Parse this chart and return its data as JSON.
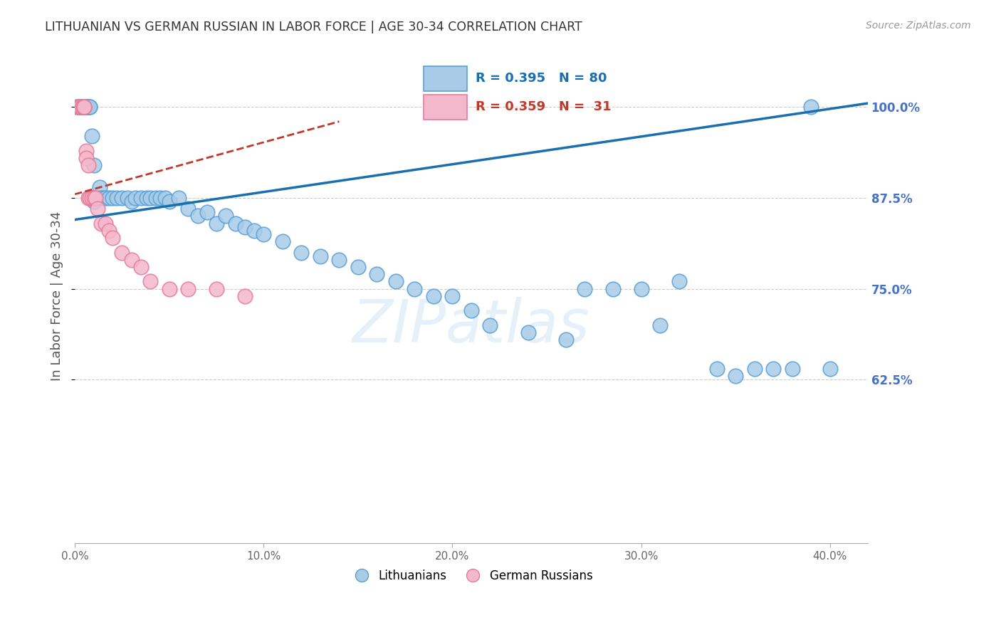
{
  "title": "LITHUANIAN VS GERMAN RUSSIAN IN LABOR FORCE | AGE 30-34 CORRELATION CHART",
  "source": "Source: ZipAtlas.com",
  "ylabel": "In Labor Force | Age 30-34",
  "x_tick_values": [
    0.0,
    0.1,
    0.2,
    0.3,
    0.4
  ],
  "y_tick_values": [
    0.625,
    0.75,
    0.875,
    1.0
  ],
  "xlim": [
    0.0,
    0.42
  ],
  "ylim": [
    0.4,
    1.08
  ],
  "blue_R": 0.395,
  "blue_N": 80,
  "pink_R": 0.359,
  "pink_N": 31,
  "legend_label_blue": "Lithuanians",
  "legend_label_pink": "German Russians",
  "blue_color": "#a8cce8",
  "pink_color": "#f4b8cc",
  "blue_edge_color": "#5a9fd4",
  "pink_edge_color": "#e87a9a",
  "blue_line_color": "#1a6faf",
  "pink_line_color": "#c0392b",
  "title_color": "#333333",
  "axis_label_color": "#555555",
  "tick_label_color_right": "#4472c4",
  "tick_label_color_bottom": "#666666",
  "grid_color": "#cccccc",
  "background_color": "#ffffff",
  "blue_x": [
    0.001,
    0.002,
    0.002,
    0.003,
    0.003,
    0.003,
    0.004,
    0.004,
    0.004,
    0.004,
    0.005,
    0.005,
    0.005,
    0.005,
    0.006,
    0.006,
    0.006,
    0.007,
    0.007,
    0.008,
    0.008,
    0.009,
    0.01,
    0.01,
    0.011,
    0.012,
    0.013,
    0.014,
    0.015,
    0.016,
    0.018,
    0.02,
    0.022,
    0.025,
    0.028,
    0.03,
    0.032,
    0.035,
    0.038,
    0.04,
    0.043,
    0.045,
    0.048,
    0.05,
    0.055,
    0.06,
    0.065,
    0.07,
    0.075,
    0.08,
    0.085,
    0.09,
    0.095,
    0.1,
    0.11,
    0.12,
    0.13,
    0.14,
    0.15,
    0.16,
    0.17,
    0.18,
    0.19,
    0.2,
    0.21,
    0.22,
    0.24,
    0.26,
    0.27,
    0.285,
    0.3,
    0.31,
    0.32,
    0.34,
    0.35,
    0.36,
    0.37,
    0.38,
    0.39,
    0.4
  ],
  "blue_y": [
    1.0,
    1.0,
    1.0,
    1.0,
    1.0,
    1.0,
    1.0,
    1.0,
    1.0,
    1.0,
    1.0,
    1.0,
    1.0,
    1.0,
    1.0,
    1.0,
    1.0,
    1.0,
    1.0,
    1.0,
    1.0,
    0.96,
    0.92,
    0.87,
    0.875,
    0.875,
    0.89,
    0.875,
    0.875,
    0.875,
    0.875,
    0.875,
    0.875,
    0.875,
    0.875,
    0.87,
    0.875,
    0.875,
    0.875,
    0.875,
    0.875,
    0.875,
    0.875,
    0.87,
    0.875,
    0.86,
    0.85,
    0.855,
    0.84,
    0.85,
    0.84,
    0.835,
    0.83,
    0.825,
    0.815,
    0.8,
    0.795,
    0.79,
    0.78,
    0.77,
    0.76,
    0.75,
    0.74,
    0.74,
    0.72,
    0.7,
    0.69,
    0.68,
    0.75,
    0.75,
    0.75,
    0.7,
    0.76,
    0.64,
    0.63,
    0.64,
    0.64,
    0.64,
    1.0,
    0.64
  ],
  "pink_x": [
    0.001,
    0.002,
    0.002,
    0.003,
    0.003,
    0.004,
    0.004,
    0.005,
    0.005,
    0.005,
    0.006,
    0.006,
    0.007,
    0.007,
    0.008,
    0.009,
    0.01,
    0.011,
    0.012,
    0.014,
    0.016,
    0.018,
    0.02,
    0.025,
    0.03,
    0.035,
    0.04,
    0.05,
    0.06,
    0.075,
    0.09
  ],
  "pink_y": [
    1.0,
    1.0,
    1.0,
    1.0,
    1.0,
    1.0,
    1.0,
    1.0,
    1.0,
    1.0,
    0.94,
    0.93,
    0.92,
    0.875,
    0.875,
    0.875,
    0.875,
    0.875,
    0.86,
    0.84,
    0.84,
    0.83,
    0.82,
    0.8,
    0.79,
    0.78,
    0.76,
    0.75,
    0.75,
    0.75,
    0.74
  ],
  "blue_trend_x0": 0.0,
  "blue_trend_y0": 0.845,
  "blue_trend_x1": 0.42,
  "blue_trend_y1": 1.005,
  "pink_trend_x0": 0.0,
  "pink_trend_y0": 0.88,
  "pink_trend_x1": 0.14,
  "pink_trend_y1": 0.98
}
